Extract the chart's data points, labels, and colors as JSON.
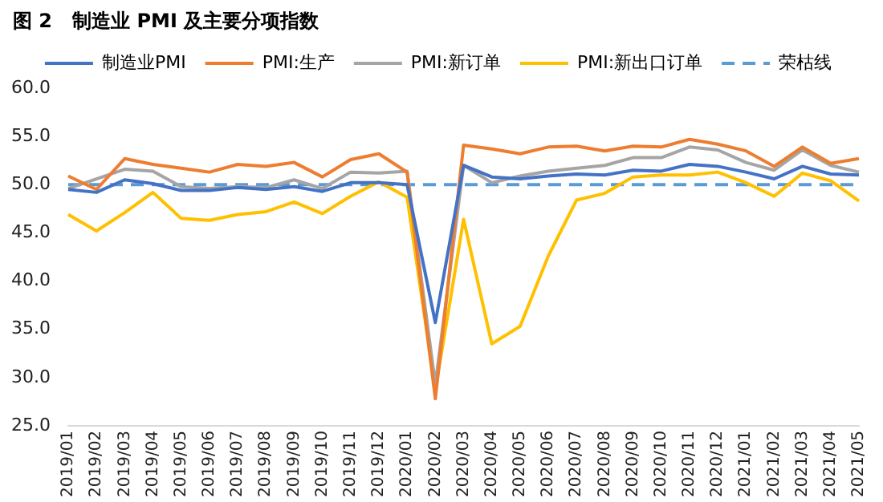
{
  "chart_data": {
    "type": "line",
    "title": "图 2   制造业 PMI 及主要分项指数",
    "categories": [
      "2019/01",
      "2019/02",
      "2019/03",
      "2019/04",
      "2019/05",
      "2019/06",
      "2019/07",
      "2019/08",
      "2019/09",
      "2019/10",
      "2019/11",
      "2019/12",
      "2020/01",
      "2020/02",
      "2020/03",
      "2020/04",
      "2020/05",
      "2020/06",
      "2020/07",
      "2020/08",
      "2020/09",
      "2020/10",
      "2020/11",
      "2020/12",
      "2021/01",
      "2021/02",
      "2021/03",
      "2021/04",
      "2021/05"
    ],
    "series": [
      {
        "name": "制造业PMI",
        "color": "#4472c4",
        "values": [
          49.5,
          49.2,
          50.5,
          50.1,
          49.4,
          49.4,
          49.7,
          49.5,
          49.8,
          49.3,
          50.2,
          50.2,
          50.0,
          35.7,
          52.0,
          50.8,
          50.6,
          50.9,
          51.1,
          51.0,
          51.5,
          51.4,
          52.1,
          51.9,
          51.3,
          50.6,
          51.9,
          51.1,
          51.0
        ]
      },
      {
        "name": "PMI:生产",
        "color": "#ed7d31",
        "values": [
          50.9,
          49.5,
          52.7,
          52.1,
          51.7,
          51.3,
          52.1,
          51.9,
          52.3,
          50.8,
          52.6,
          53.2,
          51.3,
          27.8,
          54.1,
          53.7,
          53.2,
          53.9,
          54.0,
          53.5,
          54.0,
          53.9,
          54.7,
          54.2,
          53.5,
          51.9,
          53.9,
          52.2,
          52.7
        ]
      },
      {
        "name": "PMI:新订单",
        "color": "#a5a5a5",
        "values": [
          49.6,
          50.6,
          51.6,
          51.4,
          49.8,
          49.6,
          49.8,
          49.7,
          50.5,
          49.6,
          51.3,
          51.2,
          51.4,
          29.3,
          52.0,
          50.2,
          50.9,
          51.4,
          51.7,
          52.0,
          52.8,
          52.8,
          53.9,
          53.6,
          52.3,
          51.5,
          53.6,
          52.0,
          51.3
        ]
      },
      {
        "name": "PMI:新出口订单",
        "color": "#ffc000",
        "values": [
          46.9,
          45.2,
          47.1,
          49.2,
          46.5,
          46.3,
          46.9,
          47.2,
          48.2,
          47.0,
          48.8,
          50.3,
          48.7,
          28.7,
          46.4,
          33.5,
          35.3,
          42.6,
          48.4,
          49.1,
          50.8,
          51.0,
          51.0,
          51.3,
          50.2,
          48.8,
          51.2,
          50.4,
          48.3
        ]
      },
      {
        "name": "荣枯线",
        "color": "#5b9bd5",
        "line_style": "dashed",
        "values": [
          50,
          50,
          50,
          50,
          50,
          50,
          50,
          50,
          50,
          50,
          50,
          50,
          50,
          50,
          50,
          50,
          50,
          50,
          50,
          50,
          50,
          50,
          50,
          50,
          50,
          50,
          50,
          50,
          50
        ]
      }
    ],
    "ylim": [
      25,
      60
    ],
    "yticks": [
      {
        "value": 25,
        "label": "25.0"
      },
      {
        "value": 30,
        "label": "30.0"
      },
      {
        "value": 35,
        "label": "35.0"
      },
      {
        "value": 40,
        "label": "40.0"
      },
      {
        "value": 45,
        "label": "45.0"
      },
      {
        "value": 50,
        "label": "50.0"
      },
      {
        "value": 55,
        "label": "55.0"
      },
      {
        "value": 60,
        "label": "60.0"
      }
    ],
    "grid": false,
    "legend": "top",
    "marker": "none",
    "line_style": "solid"
  }
}
